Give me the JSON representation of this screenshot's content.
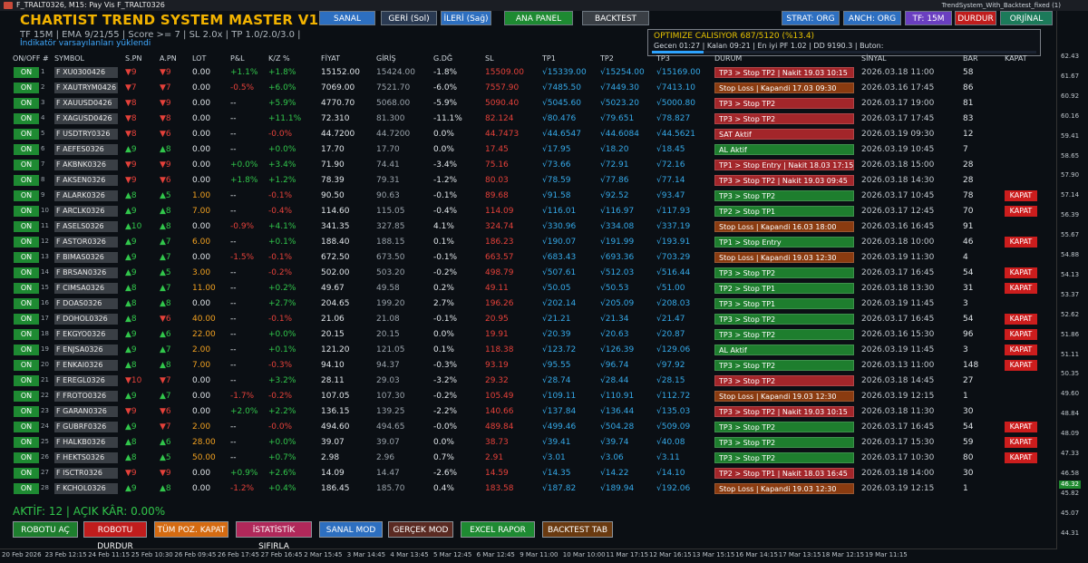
{
  "window_title": "F_TRALT0326, M15: Pay Vis F_TRALT0326",
  "indicator_label": "TrendSystem_With_Backtest_fixed (1)",
  "app_title": "CHARTIST TREND SYSTEM MASTER V1.73",
  "info_line": "TF 15M | EMA 9/21/55 | Score >= 7 | SL 2.0x | TP 1.0/2.0/3.0 |",
  "load_line": "İndikatör varsayılanları yüklendi",
  "top_buttons": {
    "sanal": "SANAL",
    "geri": "GERİ (Sol)",
    "ileri": "İLERİ (Sağ)",
    "ana_panel": "ANA PANEL",
    "backtest": "BACKTEST",
    "strat": "STRAT: ORG",
    "anch": "ANCH: ORG",
    "tf": "TF: 15M",
    "durdur": "DURDUR",
    "orjinal": "ORJİNAL"
  },
  "optimize": {
    "line1": "OPTIMIZE CALISIYOR  687/5120  (%13.4)",
    "line2": "Gecen 01:27 | Kalan 09:21 | En iyi PF 1.02 | DD 9190.3 | Buton:",
    "progress": 13.4
  },
  "headers": [
    "ON/OFF #",
    "SYMBOL",
    "S.PN",
    "A.PN",
    "LOT",
    "P&L",
    "K/Z %",
    "FİYAT",
    "GİRİŞ",
    "G.DĞ",
    "SL",
    "TP1",
    "TP2",
    "TP3",
    "DURUM",
    "SİNYAL",
    "BAR",
    "KAPAT"
  ],
  "on_label": "ON",
  "kapat_label": "KAPAT",
  "colors": {
    "green_status": "#1e7e2e",
    "red_status": "#a3262a",
    "orange_status": "#8a3b10"
  },
  "rows": [
    {
      "n": "1",
      "sym": "XU0300426",
      "spn": "▼9",
      "spnd": "down",
      "apn": "▼9",
      "apnd": "down",
      "lot": "0.00",
      "lotc": "neutral",
      "pl": "+1.1%",
      "plc": "up",
      "kz": "+1.8%",
      "kzc": "up",
      "fiyat": "15152.00",
      "giris": "15424.00",
      "gdg": "-1.8%",
      "sl": "15509.00",
      "tp1": "√15339.00",
      "tp2": "√15254.00",
      "tp3": "√15169.00",
      "durum": "TP3 > Stop TP2 | Nakit 19.03 10:15",
      "ds": "red",
      "sinyal": "2026.03.18 11:00",
      "bar": "58",
      "kapat": false
    },
    {
      "n": "2",
      "sym": "XAUTRYM0426",
      "spn": "▼7",
      "spnd": "down",
      "apn": "▼7",
      "apnd": "down",
      "lot": "0.00",
      "lotc": "neutral",
      "pl": "-0.5%",
      "plc": "down",
      "kz": "+6.0%",
      "kzc": "up",
      "fiyat": "7069.00",
      "giris": "7521.70",
      "gdg": "-6.0%",
      "sl": "7557.90",
      "tp1": "√7485.50",
      "tp2": "√7449.30",
      "tp3": "√7413.10",
      "durum": "Stop Loss | Kapandi 17.03 09:30",
      "ds": "orange",
      "sinyal": "2026.03.16 17:45",
      "bar": "86",
      "kapat": false
    },
    {
      "n": "3",
      "sym": "XAUUSD0426",
      "spn": "▼8",
      "spnd": "down",
      "apn": "▼9",
      "apnd": "down",
      "lot": "0.00",
      "lotc": "neutral",
      "pl": "--",
      "plc": "neutral",
      "kz": "+5.9%",
      "kzc": "up",
      "fiyat": "4770.70",
      "giris": "5068.00",
      "gdg": "-5.9%",
      "sl": "5090.40",
      "tp1": "√5045.60",
      "tp2": "√5023.20",
      "tp3": "√5000.80",
      "durum": "TP3 > Stop TP2",
      "ds": "red",
      "sinyal": "2026.03.17 19:00",
      "bar": "81",
      "kapat": false
    },
    {
      "n": "4",
      "sym": "XAGUSD0426",
      "spn": "▼8",
      "spnd": "down",
      "apn": "▼8",
      "apnd": "down",
      "lot": "0.00",
      "lotc": "neutral",
      "pl": "--",
      "plc": "neutral",
      "kz": "+11.1%",
      "kzc": "up",
      "fiyat": "72.310",
      "giris": "81.300",
      "gdg": "-11.1%",
      "sl": "82.124",
      "tp1": "√80.476",
      "tp2": "√79.651",
      "tp3": "√78.827",
      "durum": "TP3 > Stop TP2",
      "ds": "red",
      "sinyal": "2026.03.17 17:45",
      "bar": "83",
      "kapat": false
    },
    {
      "n": "5",
      "sym": "USDTRY0326",
      "spn": "▼8",
      "spnd": "down",
      "apn": "▼6",
      "apnd": "down",
      "lot": "0.00",
      "lotc": "neutral",
      "pl": "--",
      "plc": "neutral",
      "kz": "-0.0%",
      "kzc": "down",
      "fiyat": "44.7200",
      "giris": "44.7200",
      "gdg": "0.0%",
      "sl": "44.7473",
      "tp1": "√44.6547",
      "tp2": "√44.6084",
      "tp3": "√44.5621",
      "durum": "SAT Aktif",
      "ds": "red",
      "sinyal": "2026.03.19 09:30",
      "bar": "12",
      "kapat": false
    },
    {
      "n": "6",
      "sym": "AEFES0326",
      "spn": "▲9",
      "spnd": "up",
      "apn": "▲8",
      "apnd": "up",
      "lot": "0.00",
      "lotc": "neutral",
      "pl": "--",
      "plc": "neutral",
      "kz": "+0.0%",
      "kzc": "up",
      "fiyat": "17.70",
      "giris": "17.70",
      "gdg": "0.0%",
      "sl": "17.45",
      "tp1": "√17.95",
      "tp2": "√18.20",
      "tp3": "√18.45",
      "durum": "AL Aktif",
      "ds": "green",
      "sinyal": "2026.03.19 10:45",
      "bar": "7",
      "kapat": false
    },
    {
      "n": "7",
      "sym": "AKBNK0326",
      "spn": "▼9",
      "spnd": "down",
      "apn": "▼9",
      "apnd": "down",
      "lot": "0.00",
      "lotc": "neutral",
      "pl": "+0.0%",
      "plc": "up",
      "kz": "+3.4%",
      "kzc": "up",
      "fiyat": "71.90",
      "giris": "74.41",
      "gdg": "-3.4%",
      "sl": "75.16",
      "tp1": "√73.66",
      "tp2": "√72.91",
      "tp3": "√72.16",
      "durum": "TP1 > Stop Entry | Nakit 18.03 17:15",
      "ds": "red",
      "sinyal": "2026.03.18 15:00",
      "bar": "28",
      "kapat": false
    },
    {
      "n": "8",
      "sym": "AKSEN0326",
      "spn": "▼9",
      "spnd": "down",
      "apn": "▼6",
      "apnd": "down",
      "lot": "0.00",
      "lotc": "neutral",
      "pl": "+1.8%",
      "plc": "up",
      "kz": "+1.2%",
      "kzc": "up",
      "fiyat": "78.39",
      "giris": "79.31",
      "gdg": "-1.2%",
      "sl": "80.03",
      "tp1": "√78.59",
      "tp2": "√77.86",
      "tp3": "√77.14",
      "durum": "TP3 > Stop TP2 | Nakit 19.03 09:45",
      "ds": "red",
      "sinyal": "2026.03.18 14:30",
      "bar": "28",
      "kapat": false
    },
    {
      "n": "9",
      "sym": "ALARK0326",
      "spn": "▲8",
      "spnd": "up",
      "apn": "▲5",
      "apnd": "up",
      "lot": "1.00",
      "lotc": "orange",
      "pl": "--",
      "plc": "neutral",
      "kz": "-0.1%",
      "kzc": "down",
      "fiyat": "90.50",
      "giris": "90.63",
      "gdg": "-0.1%",
      "sl": "89.68",
      "tp1": "√91.58",
      "tp2": "√92.52",
      "tp3": "√93.47",
      "durum": "TP3 > Stop TP2",
      "ds": "green",
      "sinyal": "2026.03.17 10:45",
      "bar": "78",
      "kapat": true
    },
    {
      "n": "10",
      "sym": "ARCLK0326",
      "spn": "▲9",
      "spnd": "up",
      "apn": "▲8",
      "apnd": "up",
      "lot": "7.00",
      "lotc": "orange",
      "pl": "--",
      "plc": "neutral",
      "kz": "-0.4%",
      "kzc": "down",
      "fiyat": "114.60",
      "giris": "115.05",
      "gdg": "-0.4%",
      "sl": "114.09",
      "tp1": "√116.01",
      "tp2": "√116.97",
      "tp3": "√117.93",
      "durum": "TP2 > Stop TP1",
      "ds": "green",
      "sinyal": "2026.03.17 12:45",
      "bar": "70",
      "kapat": true
    },
    {
      "n": "11",
      "sym": "ASELS0326",
      "spn": "▲10",
      "spnd": "up",
      "apn": "▲8",
      "apnd": "up",
      "lot": "0.00",
      "lotc": "neutral",
      "pl": "-0.9%",
      "plc": "down",
      "kz": "+4.1%",
      "kzc": "up",
      "fiyat": "341.35",
      "giris": "327.85",
      "gdg": "4.1%",
      "sl": "324.74",
      "tp1": "√330.96",
      "tp2": "√334.08",
      "tp3": "√337.19",
      "durum": "Stop Loss | Kapandi 16.03 18:00",
      "ds": "orange",
      "sinyal": "2026.03.16 16:45",
      "bar": "91",
      "kapat": false
    },
    {
      "n": "12",
      "sym": "ASTOR0326",
      "spn": "▲9",
      "spnd": "up",
      "apn": "▲7",
      "apnd": "up",
      "lot": "6.00",
      "lotc": "orange",
      "pl": "--",
      "plc": "neutral",
      "kz": "+0.1%",
      "kzc": "up",
      "fiyat": "188.40",
      "giris": "188.15",
      "gdg": "0.1%",
      "sl": "186.23",
      "tp1": "√190.07",
      "tp2": "√191.99",
      "tp3": "√193.91",
      "durum": "TP1 > Stop Entry",
      "ds": "green",
      "sinyal": "2026.03.18 10:00",
      "bar": "46",
      "kapat": true
    },
    {
      "n": "13",
      "sym": "BIMAS0326",
      "spn": "▲9",
      "spnd": "up",
      "apn": "▲7",
      "apnd": "up",
      "lot": "0.00",
      "lotc": "neutral",
      "pl": "-1.5%",
      "plc": "down",
      "kz": "-0.1%",
      "kzc": "down",
      "fiyat": "672.50",
      "giris": "673.50",
      "gdg": "-0.1%",
      "sl": "663.57",
      "tp1": "√683.43",
      "tp2": "√693.36",
      "tp3": "√703.29",
      "durum": "Stop Loss | Kapandi 19.03 12:30",
      "ds": "orange",
      "sinyal": "2026.03.19 11:30",
      "bar": "4",
      "kapat": false
    },
    {
      "n": "14",
      "sym": "BRSAN0326",
      "spn": "▲9",
      "spnd": "up",
      "apn": "▲5",
      "apnd": "up",
      "lot": "3.00",
      "lotc": "orange",
      "pl": "--",
      "plc": "neutral",
      "kz": "-0.2%",
      "kzc": "down",
      "fiyat": "502.00",
      "giris": "503.20",
      "gdg": "-0.2%",
      "sl": "498.79",
      "tp1": "√507.61",
      "tp2": "√512.03",
      "tp3": "√516.44",
      "durum": "TP3 > Stop TP2",
      "ds": "green",
      "sinyal": "2026.03.17 16:45",
      "bar": "54",
      "kapat": true
    },
    {
      "n": "15",
      "sym": "CIMSA0326",
      "spn": "▲8",
      "spnd": "up",
      "apn": "▲7",
      "apnd": "up",
      "lot": "11.00",
      "lotc": "orange",
      "pl": "--",
      "plc": "neutral",
      "kz": "+0.2%",
      "kzc": "up",
      "fiyat": "49.67",
      "giris": "49.58",
      "gdg": "0.2%",
      "sl": "49.11",
      "tp1": "√50.05",
      "tp2": "√50.53",
      "tp3": "√51.00",
      "durum": "TP2 > Stop TP1",
      "ds": "green",
      "sinyal": "2026.03.18 13:30",
      "bar": "31",
      "kapat": true
    },
    {
      "n": "16",
      "sym": "DOAS0326",
      "spn": "▲8",
      "spnd": "up",
      "apn": "▲8",
      "apnd": "up",
      "lot": "0.00",
      "lotc": "neutral",
      "pl": "--",
      "plc": "neutral",
      "kz": "+2.7%",
      "kzc": "up",
      "fiyat": "204.65",
      "giris": "199.20",
      "gdg": "2.7%",
      "sl": "196.26",
      "tp1": "√202.14",
      "tp2": "√205.09",
      "tp3": "√208.03",
      "durum": "TP3 > Stop TP1",
      "ds": "green",
      "sinyal": "2026.03.19 11:45",
      "bar": "3",
      "kapat": false
    },
    {
      "n": "17",
      "sym": "DOHOL0326",
      "spn": "▲8",
      "spnd": "up",
      "apn": "▼6",
      "apnd": "down",
      "lot": "40.00",
      "lotc": "orange",
      "pl": "--",
      "plc": "neutral",
      "kz": "-0.1%",
      "kzc": "down",
      "fiyat": "21.06",
      "giris": "21.08",
      "gdg": "-0.1%",
      "sl": "20.95",
      "tp1": "√21.21",
      "tp2": "√21.34",
      "tp3": "√21.47",
      "durum": "TP3 > Stop TP2",
      "ds": "green",
      "sinyal": "2026.03.17 16:45",
      "bar": "54",
      "kapat": true
    },
    {
      "n": "18",
      "sym": "EKGYO0326",
      "spn": "▲9",
      "spnd": "up",
      "apn": "▲6",
      "apnd": "up",
      "lot": "22.00",
      "lotc": "orange",
      "pl": "--",
      "plc": "neutral",
      "kz": "+0.0%",
      "kzc": "up",
      "fiyat": "20.15",
      "giris": "20.15",
      "gdg": "0.0%",
      "sl": "19.91",
      "tp1": "√20.39",
      "tp2": "√20.63",
      "tp3": "√20.87",
      "durum": "TP3 > Stop TP2",
      "ds": "green",
      "sinyal": "2026.03.16 15:30",
      "bar": "96",
      "kapat": true
    },
    {
      "n": "19",
      "sym": "ENJSA0326",
      "spn": "▲9",
      "spnd": "up",
      "apn": "▲7",
      "apnd": "up",
      "lot": "2.00",
      "lotc": "orange",
      "pl": "--",
      "plc": "neutral",
      "kz": "+0.1%",
      "kzc": "up",
      "fiyat": "121.20",
      "giris": "121.05",
      "gdg": "0.1%",
      "sl": "118.38",
      "tp1": "√123.72",
      "tp2": "√126.39",
      "tp3": "√129.06",
      "durum": "AL Aktif",
      "ds": "green",
      "sinyal": "2026.03.19 11:45",
      "bar": "3",
      "kapat": true
    },
    {
      "n": "20",
      "sym": "ENKAI0326",
      "spn": "▲8",
      "spnd": "up",
      "apn": "▲8",
      "apnd": "up",
      "lot": "7.00",
      "lotc": "orange",
      "pl": "--",
      "plc": "neutral",
      "kz": "-0.3%",
      "kzc": "down",
      "fiyat": "94.10",
      "giris": "94.37",
      "gdg": "-0.3%",
      "sl": "93.19",
      "tp1": "√95.55",
      "tp2": "√96.74",
      "tp3": "√97.92",
      "durum": "TP3 > Stop TP2",
      "ds": "green",
      "sinyal": "2026.03.13 11:00",
      "bar": "148",
      "kapat": true
    },
    {
      "n": "21",
      "sym": "EREGL0326",
      "spn": "▼10",
      "spnd": "down",
      "apn": "▼7",
      "apnd": "down",
      "lot": "0.00",
      "lotc": "neutral",
      "pl": "--",
      "plc": "neutral",
      "kz": "+3.2%",
      "kzc": "up",
      "fiyat": "28.11",
      "giris": "29.03",
      "gdg": "-3.2%",
      "sl": "29.32",
      "tp1": "√28.74",
      "tp2": "√28.44",
      "tp3": "√28.15",
      "durum": "TP3 > Stop TP2",
      "ds": "red",
      "sinyal": "2026.03.18 14:45",
      "bar": "27",
      "kapat": false
    },
    {
      "n": "22",
      "sym": "FROTO0326",
      "spn": "▲9",
      "spnd": "up",
      "apn": "▲7",
      "apnd": "up",
      "lot": "0.00",
      "lotc": "neutral",
      "pl": "-1.7%",
      "plc": "down",
      "kz": "-0.2%",
      "kzc": "down",
      "fiyat": "107.05",
      "giris": "107.30",
      "gdg": "-0.2%",
      "sl": "105.49",
      "tp1": "√109.11",
      "tp2": "√110.91",
      "tp3": "√112.72",
      "durum": "Stop Loss | Kapandi 19.03 12:30",
      "ds": "orange",
      "sinyal": "2026.03.19 12:15",
      "bar": "1",
      "kapat": false
    },
    {
      "n": "23",
      "sym": "GARAN0326",
      "spn": "▼9",
      "spnd": "down",
      "apn": "▼6",
      "apnd": "down",
      "lot": "0.00",
      "lotc": "neutral",
      "pl": "+2.0%",
      "plc": "up",
      "kz": "+2.2%",
      "kzc": "up",
      "fiyat": "136.15",
      "giris": "139.25",
      "gdg": "-2.2%",
      "sl": "140.66",
      "tp1": "√137.84",
      "tp2": "√136.44",
      "tp3": "√135.03",
      "durum": "TP3 > Stop TP2 | Nakit 19.03 10:15",
      "ds": "red",
      "sinyal": "2026.03.18 11:30",
      "bar": "30",
      "kapat": false
    },
    {
      "n": "24",
      "sym": "GUBRF0326",
      "spn": "▲9",
      "spnd": "up",
      "apn": "▼7",
      "apnd": "down",
      "lot": "2.00",
      "lotc": "orange",
      "pl": "--",
      "plc": "neutral",
      "kz": "-0.0%",
      "kzc": "down",
      "fiyat": "494.60",
      "giris": "494.65",
      "gdg": "-0.0%",
      "sl": "489.84",
      "tp1": "√499.46",
      "tp2": "√504.28",
      "tp3": "√509.09",
      "durum": "TP3 > Stop TP2",
      "ds": "green",
      "sinyal": "2026.03.17 16:45",
      "bar": "54",
      "kapat": true
    },
    {
      "n": "25",
      "sym": "HALKB0326",
      "spn": "▲8",
      "spnd": "up",
      "apn": "▲6",
      "apnd": "up",
      "lot": "28.00",
      "lotc": "orange",
      "pl": "--",
      "plc": "neutral",
      "kz": "+0.0%",
      "kzc": "up",
      "fiyat": "39.07",
      "giris": "39.07",
      "gdg": "0.0%",
      "sl": "38.73",
      "tp1": "√39.41",
      "tp2": "√39.74",
      "tp3": "√40.08",
      "durum": "TP3 > Stop TP2",
      "ds": "green",
      "sinyal": "2026.03.17 15:30",
      "bar": "59",
      "kapat": true
    },
    {
      "n": "26",
      "sym": "HEKTS0326",
      "spn": "▲8",
      "spnd": "up",
      "apn": "▲5",
      "apnd": "up",
      "lot": "50.00",
      "lotc": "orange",
      "pl": "--",
      "plc": "neutral",
      "kz": "+0.7%",
      "kzc": "up",
      "fiyat": "2.98",
      "giris": "2.96",
      "gdg": "0.7%",
      "sl": "2.91",
      "tp1": "√3.01",
      "tp2": "√3.06",
      "tp3": "√3.11",
      "durum": "TP3 > Stop TP2",
      "ds": "green",
      "sinyal": "2026.03.17 10:30",
      "bar": "80",
      "kapat": true
    },
    {
      "n": "27",
      "sym": "ISCTR0326",
      "spn": "▼9",
      "spnd": "down",
      "apn": "▼9",
      "apnd": "down",
      "lot": "0.00",
      "lotc": "neutral",
      "pl": "+0.9%",
      "plc": "up",
      "kz": "+2.6%",
      "kzc": "up",
      "fiyat": "14.09",
      "giris": "14.47",
      "gdg": "-2.6%",
      "sl": "14.59",
      "tp1": "√14.35",
      "tp2": "√14.22",
      "tp3": "√14.10",
      "durum": "TP2 > Stop TP1 | Nakit 18.03 16:45",
      "ds": "red",
      "sinyal": "2026.03.18 14:00",
      "bar": "30",
      "kapat": false
    },
    {
      "n": "28",
      "sym": "KCHOL0326",
      "spn": "▲9",
      "spnd": "up",
      "apn": "▲8",
      "apnd": "up",
      "lot": "0.00",
      "lotc": "neutral",
      "pl": "-1.2%",
      "plc": "down",
      "kz": "+0.4%",
      "kzc": "up",
      "fiyat": "186.45",
      "giris": "185.70",
      "gdg": "0.4%",
      "sl": "183.58",
      "tp1": "√187.82",
      "tp2": "√189.94",
      "tp3": "√192.06",
      "durum": "Stop Loss | Kapandi 19.03 12:30",
      "ds": "orange",
      "sinyal": "2026.03.19 12:15",
      "bar": "1",
      "kapat": false
    }
  ],
  "summary": "AKTİF: 12 | AÇIK KÂR: 0.00%",
  "bottom_buttons": [
    "ROBOTU AÇ",
    "ROBOTU DURDUR",
    "TÜM POZ. KAPAT",
    "İSTATİSTİK SIFIRLA",
    "SANAL MOD",
    "GERÇEK MOD",
    "EXCEL RAPOR",
    "BACKTEST TAB"
  ],
  "y_ticks": [
    "62.43",
    "61.67",
    "60.92",
    "60.16",
    "59.41",
    "58.65",
    "57.90",
    "57.14",
    "56.39",
    "55.67",
    "54.88",
    "54.13",
    "53.37",
    "52.62",
    "51.86",
    "51.11",
    "50.35",
    "49.60",
    "48.84",
    "48.09",
    "47.33",
    "46.58",
    "45.82",
    "45.07",
    "44.31"
  ],
  "y_badge": "46.32",
  "x_ticks": [
    "20 Feb 2026",
    "23 Feb 12:15",
    "24 Feb 11:15",
    "25 Feb 10:30",
    "26 Feb 09:45",
    "26 Feb 17:45",
    "27 Feb 16:45",
    "2 Mar 15:45",
    "3 Mar 14:45",
    "4 Mar 13:45",
    "5 Mar 12:45",
    "6 Mar 12:45",
    "9 Mar 11:00",
    "10 Mar 10:00",
    "11 Mar 17:15",
    "12 Mar 16:15",
    "13 Mar 15:15",
    "16 Mar 14:15",
    "17 Mar 13:15",
    "18 Mar 12:15",
    "19 Mar 11:15"
  ]
}
